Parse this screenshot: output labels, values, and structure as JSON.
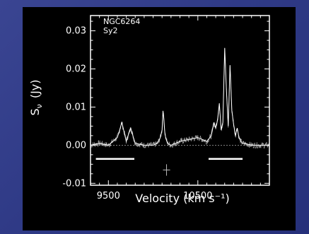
{
  "chart_data": {
    "type": "line",
    "galaxy": "NGC6264",
    "class": "Sy2",
    "xlabel": "Velocity  (km s⁻¹)",
    "ylabel_main": "S",
    "ylabel_sub": "ν",
    "ylabel_unit": "(Jy)",
    "xlim": [
      9300,
      11300
    ],
    "ylim": [
      -0.0105,
      0.034
    ],
    "xticks": [
      {
        "v": 9500,
        "label": "9500"
      },
      {
        "v": 10500,
        "label": "10500"
      }
    ],
    "yticks": [
      {
        "v": -0.01,
        "label": "-0.01"
      },
      {
        "v": 0.0,
        "label": "0.00"
      },
      {
        "v": 0.01,
        "label": "0.01"
      },
      {
        "v": 0.02,
        "label": "0.02"
      },
      {
        "v": 0.03,
        "label": "0.03"
      }
    ],
    "series": [
      {
        "x": [
          9300,
          9400,
          9500,
          9560,
          9600,
          9620,
          9650,
          9680,
          9700,
          9720,
          9750,
          9780,
          9800,
          9900,
          10000,
          10050,
          10080,
          10100,
          10110,
          10120,
          10130,
          10140,
          10160,
          10200,
          10300,
          10400,
          10500,
          10600,
          10650,
          10680,
          10700,
          10720,
          10740,
          10760,
          10780,
          10800,
          10820,
          10840,
          10860,
          10880,
          10900,
          10920,
          10940,
          10960,
          10980,
          11000,
          11050,
          11100,
          11200,
          11300
        ],
        "y": [
          0.0,
          0.0005,
          0.0,
          0.0012,
          0.002,
          0.0035,
          0.006,
          0.003,
          0.001,
          0.0025,
          0.0045,
          0.002,
          0.0005,
          0.0,
          0.0,
          0.0005,
          0.002,
          0.004,
          0.009,
          0.007,
          0.0035,
          0.002,
          0.0005,
          0.0,
          0.001,
          0.0015,
          0.002,
          0.001,
          0.0025,
          0.006,
          0.0045,
          0.0065,
          0.011,
          0.004,
          0.006,
          0.0255,
          0.014,
          0.005,
          0.021,
          0.009,
          0.0055,
          0.0025,
          0.0045,
          0.002,
          0.001,
          0.0005,
          0.0003,
          0.0,
          0.0,
          0.0
        ]
      }
    ],
    "line_windows": [
      [
        9360,
        9790
      ],
      [
        10620,
        11000
      ]
    ],
    "error_bar": {
      "x": 10150,
      "y": -0.0065,
      "dx": 40,
      "dy": 0.0015
    }
  }
}
